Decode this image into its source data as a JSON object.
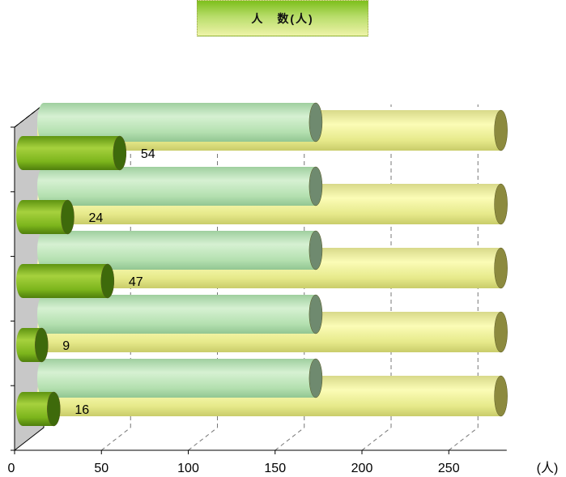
{
  "chart_data": {
    "type": "bar",
    "orientation": "horizontal",
    "style": "3d-cylinder",
    "title": "人　数(人)",
    "unit_label": "(人)",
    "xlim": [
      0,
      280
    ],
    "x_ticks": [
      0,
      50,
      100,
      150,
      200,
      250
    ],
    "grid": true,
    "categories": [
      "",
      "",
      "",
      "",
      ""
    ],
    "series": [
      {
        "values": [
          54,
          24,
          47,
          9,
          16
        ],
        "color": "#7ab51d"
      },
      {
        "values": [
          165,
          165,
          165,
          165,
          165
        ],
        "color": "#b5e0b0"
      },
      {
        "values": [
          280,
          280,
          280,
          280,
          280
        ],
        "color": "#eef08c"
      }
    ],
    "data_labels": [
      "54",
      "24",
      "47",
      "9",
      "16"
    ]
  }
}
